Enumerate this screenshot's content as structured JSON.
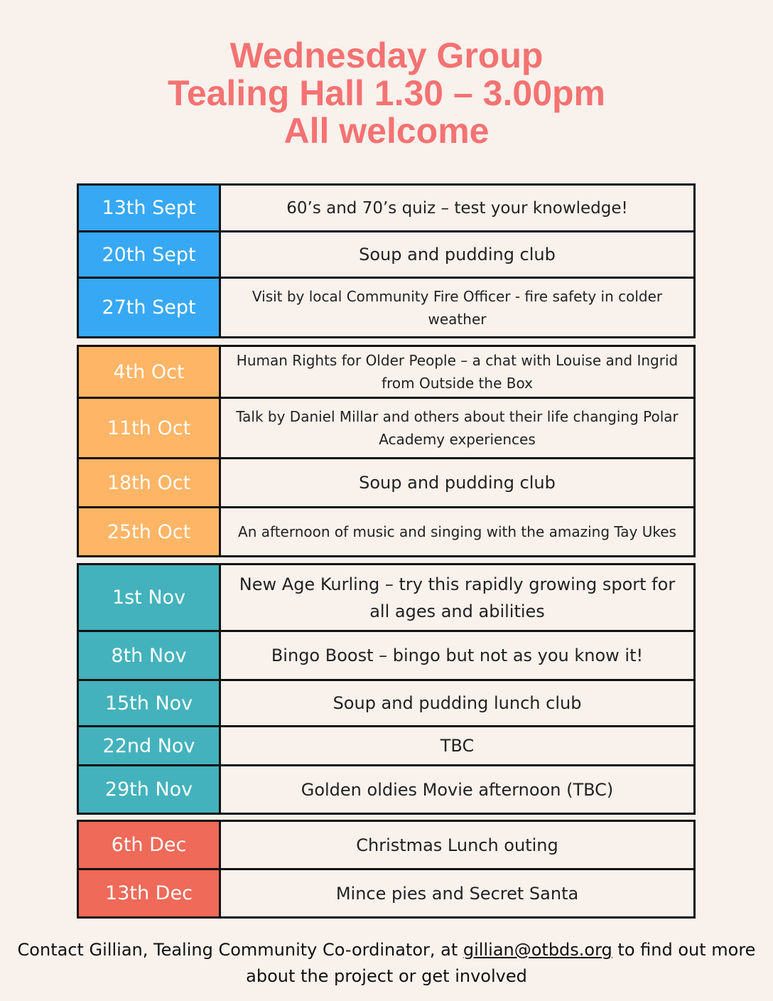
{
  "title": {
    "line1": "Wednesday Group",
    "line2": "Tealing Hall 1.30 – 3.00pm",
    "line3": "All welcome"
  },
  "colors": {
    "title": "#f47272",
    "september": "#37a8f4",
    "october": "#ffb566",
    "november": "#43b2bc",
    "december": "#ef6a58"
  },
  "months": {
    "september": [
      {
        "date": "13th Sept",
        "event": "60’s and 70’s quiz – test your knowledge!"
      },
      {
        "date": "20th Sept",
        "event": "Soup and pudding club"
      },
      {
        "date": "27th Sept",
        "event": "Visit by local Community Fire Officer - fire safety in colder weather"
      }
    ],
    "october": [
      {
        "date": "4th Oct",
        "event": "Human Rights for Older People – a chat with Louise and Ingrid from Outside the Box"
      },
      {
        "date": "11th Oct",
        "event": "Talk by Daniel Millar and others about their life changing Polar Academy experiences"
      },
      {
        "date": "18th Oct",
        "event": "Soup and pudding club"
      },
      {
        "date": "25th Oct",
        "event": "An afternoon of music and singing with the amazing Tay Ukes"
      }
    ],
    "november": [
      {
        "date": "1st Nov",
        "event": "New Age Kurling – try this rapidly growing sport for all ages and abilities"
      },
      {
        "date": "8th Nov",
        "event": "Bingo Boost – bingo but not as you know it!"
      },
      {
        "date": "15th Nov",
        "event": "Soup and pudding lunch club"
      },
      {
        "date": "22nd Nov",
        "event": "TBC"
      },
      {
        "date": "29th Nov",
        "event": "Golden oldies Movie afternoon (TBC)"
      }
    ],
    "december": [
      {
        "date": "6th Dec",
        "event": "Christmas Lunch outing"
      },
      {
        "date": "13th Dec",
        "event": "Mince pies and Secret Santa"
      }
    ]
  },
  "footer": {
    "text_before": "Contact Gillian, Tealing Community Co-ordinator, at ",
    "email": "gillian@otbds.org",
    "text_after": " to find out more about the project or get involved"
  }
}
